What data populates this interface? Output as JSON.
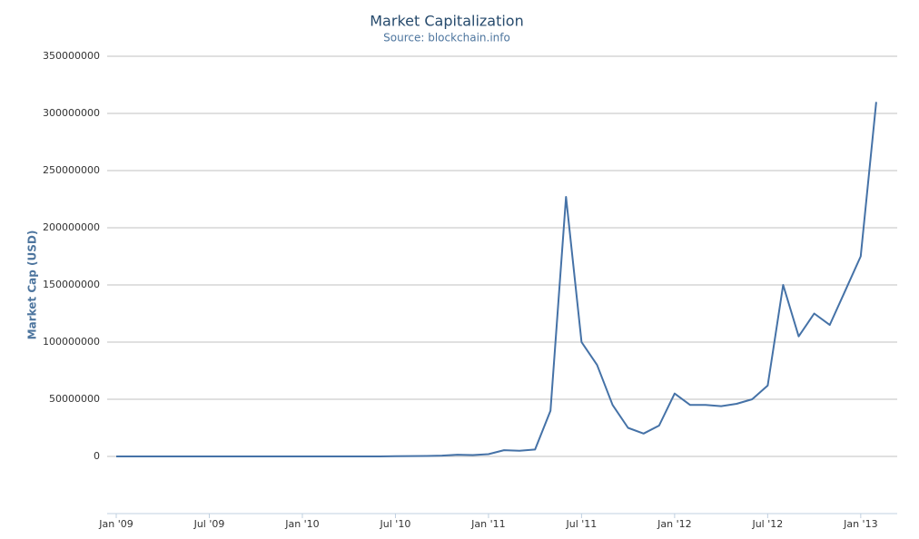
{
  "chart_data": {
    "type": "line",
    "title": "Market Capitalization",
    "subtitle": "Source: blockchain.info",
    "y_label": "Market Cap (USD)",
    "x": [
      "2009-01",
      "2009-02",
      "2009-03",
      "2009-04",
      "2009-05",
      "2009-06",
      "2009-07",
      "2009-08",
      "2009-09",
      "2009-10",
      "2009-11",
      "2009-12",
      "2010-01",
      "2010-02",
      "2010-03",
      "2010-04",
      "2010-05",
      "2010-06",
      "2010-07",
      "2010-08",
      "2010-09",
      "2010-10",
      "2010-11",
      "2010-12",
      "2011-01",
      "2011-02",
      "2011-03",
      "2011-04",
      "2011-05",
      "2011-06",
      "2011-07",
      "2011-08",
      "2011-09",
      "2011-10",
      "2011-11",
      "2011-12",
      "2012-01",
      "2012-02",
      "2012-03",
      "2012-04",
      "2012-05",
      "2012-06",
      "2012-07",
      "2012-08",
      "2012-09",
      "2012-10",
      "2012-11",
      "2012-12",
      "2013-01",
      "2013-02"
    ],
    "series": [
      {
        "name": "Market Capitalization",
        "color": "#4572a7",
        "values": [
          0,
          0,
          0,
          0,
          0,
          0,
          0,
          0,
          0,
          0,
          0,
          0,
          0,
          0,
          0,
          0,
          0,
          0,
          200000,
          300000,
          400000,
          700000,
          1500000,
          1200000,
          2000000,
          5500000,
          5000000,
          6000000,
          40000000,
          227000000,
          100000000,
          80000000,
          45000000,
          25000000,
          20000000,
          27000000,
          55000000,
          45000000,
          45000000,
          44000000,
          46000000,
          50000000,
          62000000,
          150000000,
          105000000,
          125000000,
          115000000,
          145000000,
          175000000,
          310000000
        ]
      }
    ],
    "xlim": [
      "2009-01",
      "2013-03"
    ],
    "xticks": [
      {
        "value": "2009-01",
        "label": "Jan '09"
      },
      {
        "value": "2009-07",
        "label": "Jul '09"
      },
      {
        "value": "2010-01",
        "label": "Jan '10"
      },
      {
        "value": "2010-07",
        "label": "Jul '10"
      },
      {
        "value": "2011-01",
        "label": "Jan '11"
      },
      {
        "value": "2011-07",
        "label": "Jul '11"
      },
      {
        "value": "2012-01",
        "label": "Jan '12"
      },
      {
        "value": "2012-07",
        "label": "Jul '12"
      },
      {
        "value": "2013-01",
        "label": "Jan '13"
      }
    ],
    "ylim": [
      -50000000,
      350000000
    ],
    "yticks": [
      0,
      50000000,
      100000000,
      150000000,
      200000000,
      250000000,
      300000000,
      350000000
    ],
    "grid": true
  }
}
